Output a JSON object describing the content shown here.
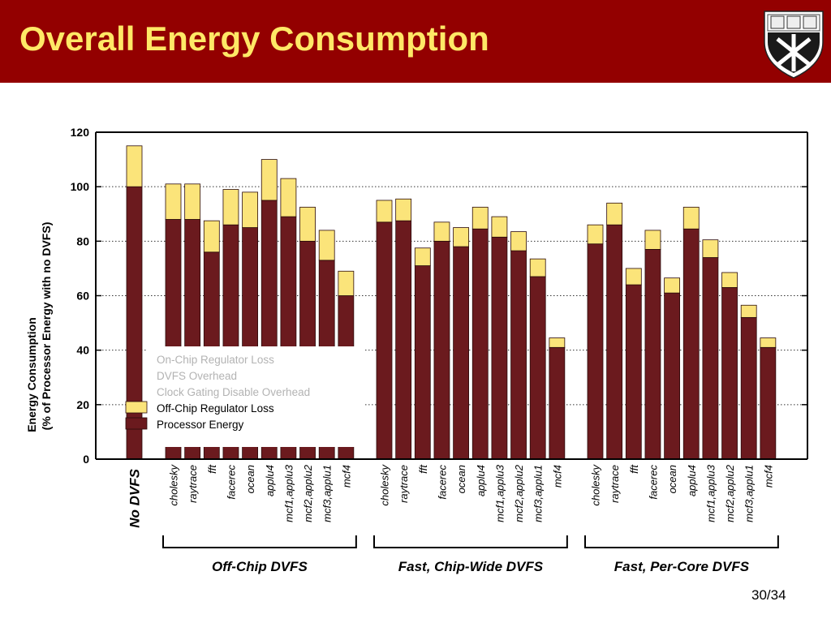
{
  "slide": {
    "title": "Overall Energy Consumption",
    "page_number": "30/34"
  },
  "colors": {
    "header_bg": "#930000",
    "title_text": "#ffe866",
    "processor_energy": "#6b1a1e",
    "offchip_regulator": "#fbe47a"
  },
  "chart_data": {
    "type": "bar",
    "stacked": true,
    "ylabel_line1": "Energy Consumption",
    "ylabel_line2": "(% of Processor Energy with no DVFS)",
    "ylim": [
      0,
      120
    ],
    "yticks": [
      0,
      20,
      40,
      60,
      80,
      100,
      120
    ],
    "grid": "horizontal dotted",
    "legend": {
      "placement": "inside-bottom-left",
      "entries": [
        {
          "label": "On-Chip Regulator Loss",
          "faded": true
        },
        {
          "label": "DVFS Overhead",
          "faded": true
        },
        {
          "label": "Clock Gating Disable Overhead",
          "faded": true
        },
        {
          "label": "Off-Chip Regulator Loss",
          "faded": false,
          "color": "#fbe47a"
        },
        {
          "label": "Processor Energy",
          "faded": false,
          "color": "#6b1a1e"
        }
      ]
    },
    "groups": [
      {
        "label": "No DVFS",
        "categories": [
          "No DVFS"
        ],
        "processor_energy": [
          100
        ],
        "offchip_regulator_loss": [
          15
        ]
      },
      {
        "label": "Off-Chip DVFS",
        "categories": [
          "cholesky",
          "raytrace",
          "fft",
          "facerec",
          "ocean",
          "applu4",
          "mcf1,applu3",
          "mcf2,applu2",
          "mcf3,applu1",
          "mcf4"
        ],
        "processor_energy": [
          88,
          88,
          76,
          86,
          85,
          95,
          89,
          80,
          73,
          60
        ],
        "offchip_regulator_loss": [
          13,
          13,
          11.5,
          13,
          13,
          15,
          14,
          12.5,
          11,
          9
        ]
      },
      {
        "label": "Fast, Chip-Wide DVFS",
        "categories": [
          "cholesky",
          "raytrace",
          "fft",
          "facerec",
          "ocean",
          "applu4",
          "mcf1,applu3",
          "mcf2,applu2",
          "mcf3,applu1",
          "mcf4"
        ],
        "processor_energy": [
          87,
          87.5,
          71,
          80,
          78,
          84.5,
          81.5,
          76.5,
          67,
          41
        ],
        "offchip_regulator_loss": [
          8,
          8,
          6.5,
          7,
          7,
          8,
          7.5,
          7,
          6.5,
          3.5
        ]
      },
      {
        "label": "Fast, Per-Core DVFS",
        "categories": [
          "cholesky",
          "raytrace",
          "fft",
          "facerec",
          "ocean",
          "applu4",
          "mcf1,applu3",
          "mcf2,applu2",
          "mcf3,applu1",
          "mcf4"
        ],
        "processor_energy": [
          79,
          86,
          64,
          77,
          61,
          84.5,
          74,
          63,
          52,
          41
        ],
        "offchip_regulator_loss": [
          7,
          8,
          6,
          7,
          5.5,
          8,
          6.5,
          5.5,
          4.5,
          3.5
        ]
      }
    ]
  }
}
